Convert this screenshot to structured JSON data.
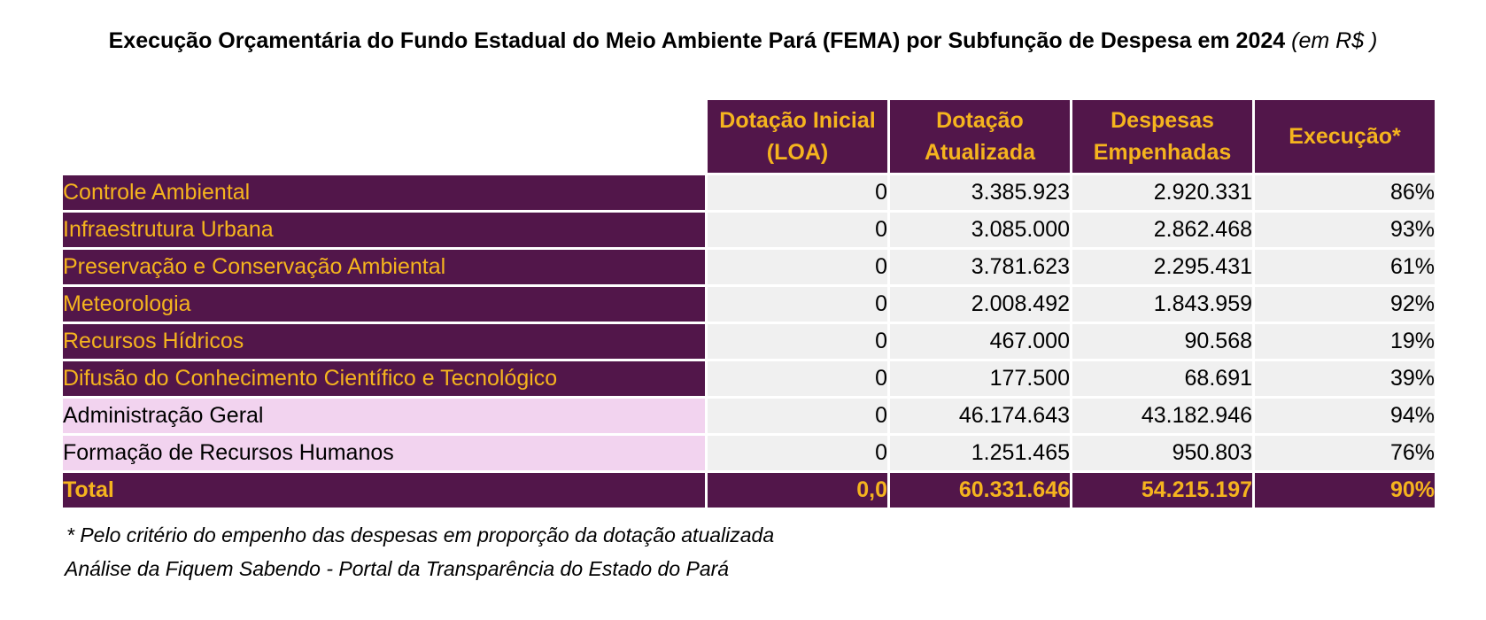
{
  "title": {
    "main": "Execução Orçamentária do Fundo Estadual do Meio Ambiente Pará (FEMA) por Subfunção de Despesa em 2024",
    "unit": "(em R$ )"
  },
  "columns": [
    {
      "line1": "Dotação Inicial",
      "line2": "(LOA)"
    },
    {
      "line1": "Dotação",
      "line2": "Atualizada"
    },
    {
      "line1": "Despesas",
      "line2": "Empenhadas"
    },
    {
      "line1": "Execução*",
      "line2": ""
    }
  ],
  "rows": [
    {
      "label": "Controle Ambiental",
      "initial": "0",
      "updated": "3.385.923",
      "committed": "2.920.331",
      "execution": "86%",
      "style": "dark"
    },
    {
      "label": "Infraestrutura Urbana",
      "initial": "0",
      "updated": "3.085.000",
      "committed": "2.862.468",
      "execution": "93%",
      "style": "dark"
    },
    {
      "label": "Preservação e Conservação Ambiental",
      "initial": "0",
      "updated": "3.781.623",
      "committed": "2.295.431",
      "execution": "61%",
      "style": "dark"
    },
    {
      "label": "Meteorologia",
      "initial": "0",
      "updated": "2.008.492",
      "committed": "1.843.959",
      "execution": "92%",
      "style": "dark"
    },
    {
      "label": "Recursos Hídricos",
      "initial": "0",
      "updated": "467.000",
      "committed": "90.568",
      "execution": "19%",
      "style": "dark"
    },
    {
      "label": "Difusão do Conhecimento Científico e Tecnológico",
      "initial": "0",
      "updated": "177.500",
      "committed": "68.691",
      "execution": "39%",
      "style": "dark"
    },
    {
      "label": "Administração Geral",
      "initial": "0",
      "updated": "46.174.643",
      "committed": "43.182.946",
      "execution": "94%",
      "style": "light"
    },
    {
      "label": "Formação de Recursos Humanos",
      "initial": "0",
      "updated": "1.251.465",
      "committed": "950.803",
      "execution": "76%",
      "style": "light"
    }
  ],
  "total": {
    "label": "Total",
    "initial": "0,0",
    "updated": "60.331.646",
    "committed": "54.215.197",
    "execution": "90%"
  },
  "notes": {
    "criterion": "* Pelo critério do empenho das despesas em proporção da dotação atualizada",
    "source": "Análise da Fiquem Sabendo - Portal da Transparência do Estado do Pará"
  },
  "colors": {
    "header_bg": "#52164a",
    "header_text": "#f5b41e",
    "light_row_bg": "#f2d3ef",
    "cell_bg": "#f0f0f0"
  }
}
